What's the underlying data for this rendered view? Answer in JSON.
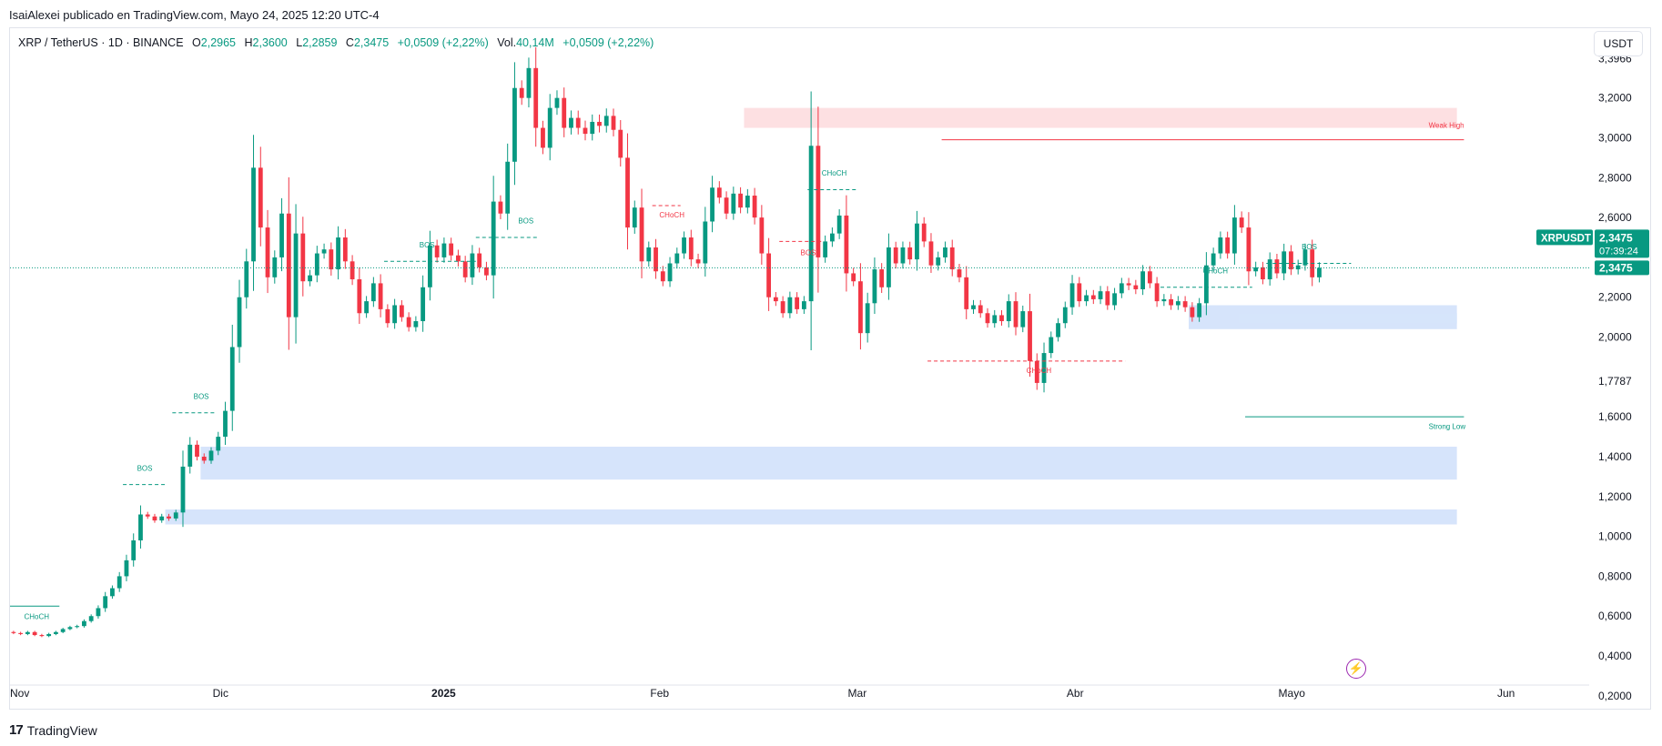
{
  "publisher": "IsaiAlexei publicado en TradingView.com, Mayo 24, 2025 12:20 UTC-4",
  "legend": {
    "symbol": "XRP / TetherUS · 1D · BINANCE",
    "o_label": "O",
    "o": "2,2965",
    "h_label": "H",
    "h": "2,3600",
    "l_label": "L",
    "l": "2,2859",
    "c_label": "C",
    "c": "2,3475",
    "change": "+0,0509 (+2,22%)",
    "vol_label": "Vol.",
    "vol": "40,14M",
    "vol_change": "+0,0509 (+2,22%)"
  },
  "currency_button": "USDT",
  "footer": {
    "logo_mark": "17",
    "brand": "TradingView"
  },
  "colors": {
    "up": "#089981",
    "down": "#f23645",
    "zone_blue": "#d6e4fb",
    "zone_red": "#fde0e2",
    "label_bg": "#089981"
  },
  "chart_data": {
    "type": "candlestick",
    "symbol": "XRPUSDT",
    "last_price": 2.3475,
    "last_price_label": "2,3475",
    "countdown": "07:39:24",
    "ylim": [
      0.14,
      3.55
    ],
    "y_ticks": [
      {
        "v": 3.3966,
        "t": "3,3966"
      },
      {
        "v": 3.2,
        "t": "3,2000"
      },
      {
        "v": 3.0,
        "t": "3,0000"
      },
      {
        "v": 2.8,
        "t": "2,8000"
      },
      {
        "v": 2.6,
        "t": "2,6000"
      },
      {
        "v": 2.2,
        "t": "2,2000"
      },
      {
        "v": 2.0,
        "t": "2,0000"
      },
      {
        "v": 1.7787,
        "t": "1,7787"
      },
      {
        "v": 1.6,
        "t": "1,6000"
      },
      {
        "v": 1.4,
        "t": "1,4000"
      },
      {
        "v": 1.2,
        "t": "1,2000"
      },
      {
        "v": 1.0,
        "t": "1,0000"
      },
      {
        "v": 0.8,
        "t": "0,8000"
      },
      {
        "v": 0.6,
        "t": "0,6000"
      },
      {
        "v": 0.4,
        "t": "0,4000"
      },
      {
        "v": 0.2,
        "t": "0,2000"
      }
    ],
    "x_ticks": [
      {
        "d": 0,
        "t": "Nov",
        "bold": false
      },
      {
        "d": 30,
        "t": "Dic",
        "bold": false
      },
      {
        "d": 61,
        "t": "2025",
        "bold": true
      },
      {
        "d": 92,
        "t": "Feb",
        "bold": false
      },
      {
        "d": 120,
        "t": "Mar",
        "bold": false
      },
      {
        "d": 151,
        "t": "Abr",
        "bold": false
      },
      {
        "d": 181,
        "t": "Mayo",
        "bold": false
      },
      {
        "d": 212,
        "t": "Jun",
        "bold": false
      }
    ],
    "closes": [
      0.515,
      0.51,
      0.52,
      0.505,
      0.5,
      0.51,
      0.52,
      0.535,
      0.545,
      0.55,
      0.575,
      0.6,
      0.64,
      0.7,
      0.74,
      0.8,
      0.88,
      0.98,
      1.11,
      1.1,
      1.08,
      1.1,
      1.09,
      1.12,
      1.35,
      1.46,
      1.4,
      1.38,
      1.43,
      1.5,
      1.63,
      1.95,
      2.2,
      2.38,
      2.85,
      2.55,
      2.3,
      2.4,
      2.62,
      2.1,
      2.52,
      2.28,
      2.31,
      2.42,
      2.44,
      2.34,
      2.5,
      2.38,
      2.29,
      2.12,
      2.18,
      2.27,
      2.14,
      2.07,
      2.16,
      2.1,
      2.05,
      2.08,
      2.25,
      2.46,
      2.4,
      2.47,
      2.41,
      2.38,
      2.3,
      2.42,
      2.35,
      2.31,
      2.68,
      2.62,
      2.88,
      3.25,
      3.2,
      3.35,
      3.05,
      2.95,
      3.15,
      3.2,
      3.05,
      3.1,
      3.05,
      3.02,
      3.08,
      3.06,
      3.11,
      3.04,
      2.9,
      2.55,
      2.65,
      2.38,
      2.45,
      2.33,
      2.28,
      2.37,
      2.42,
      2.5,
      2.39,
      2.37,
      2.58,
      2.75,
      2.7,
      2.62,
      2.72,
      2.65,
      2.71,
      2.6,
      2.42,
      2.2,
      2.18,
      2.12,
      2.2,
      2.14,
      2.18,
      2.96,
      2.4,
      2.48,
      2.52,
      2.61,
      2.32,
      2.28,
      2.02,
      2.17,
      2.34,
      2.25,
      2.45,
      2.37,
      2.45,
      2.39,
      2.57,
      2.48,
      2.36,
      2.4,
      2.45,
      2.34,
      2.3,
      2.14,
      2.16,
      2.12,
      2.07,
      2.11,
      2.08,
      2.18,
      2.05,
      2.13,
      1.88,
      1.77,
      1.92,
      2.0,
      2.07,
      2.15,
      2.27,
      2.18,
      2.21,
      2.19,
      2.23,
      2.16,
      2.22,
      2.27,
      2.26,
      2.24,
      2.33,
      2.27,
      2.18,
      2.19,
      2.16,
      2.18,
      2.15,
      2.1,
      2.17,
      2.36,
      2.42,
      2.5,
      2.42,
      2.6,
      2.55,
      2.33,
      2.35,
      2.29,
      2.39,
      2.32,
      2.43,
      2.34,
      2.36,
      2.44,
      2.3,
      2.3475
    ],
    "zones": [
      {
        "from_day": 104,
        "to_day": 205,
        "top": 3.15,
        "bottom": 3.05,
        "color": "red"
      },
      {
        "from_day": 167,
        "to_day": 205,
        "top": 2.16,
        "bottom": 2.04,
        "color": "blue"
      },
      {
        "from_day": 174,
        "to_day": 205,
        "top": 2.12,
        "bottom": 2.07,
        "color": "blue"
      },
      {
        "from_day": 27,
        "to_day": 205,
        "top": 1.45,
        "bottom": 1.285,
        "color": "blue"
      },
      {
        "from_day": 22,
        "to_day": 205,
        "top": 1.135,
        "bottom": 1.06,
        "color": "blue"
      }
    ],
    "levels": [
      {
        "from_day": 132,
        "to_day": 206,
        "y": 2.99,
        "color": "red",
        "dash": false,
        "label": "Weak High",
        "label_day": 201,
        "label_y": 3.05
      },
      {
        "from_day": 175,
        "to_day": 206,
        "y": 1.6,
        "color": "green",
        "dash": false,
        "label": "Strong Low",
        "label_day": 201,
        "label_y": 1.54
      },
      {
        "from_day": 0,
        "to_day": 7,
        "y": 0.65,
        "color": "green",
        "dash": false,
        "label": "CHoCH",
        "label_day": 2,
        "label_y": 0.585
      },
      {
        "from_day": 16,
        "to_day": 22,
        "y": 1.26,
        "color": "green",
        "dash": true,
        "label": "BOS",
        "label_day": 18,
        "label_y": 1.33
      },
      {
        "from_day": 23,
        "to_day": 29,
        "y": 1.62,
        "color": "green",
        "dash": true,
        "label": "BOS",
        "label_day": 26,
        "label_y": 1.69
      },
      {
        "from_day": 53,
        "to_day": 66,
        "y": 2.38,
        "color": "green",
        "dash": true,
        "label": "BOS",
        "label_day": 58,
        "label_y": 2.45
      },
      {
        "from_day": 66,
        "to_day": 75,
        "y": 2.5,
        "color": "green",
        "dash": true,
        "label": "BOS",
        "label_day": 72,
        "label_y": 2.57
      },
      {
        "from_day": 91,
        "to_day": 95,
        "y": 2.66,
        "color": "red",
        "dash": true,
        "label": "CHoCH",
        "label_day": 92,
        "label_y": 2.6
      },
      {
        "from_day": 113,
        "to_day": 120,
        "y": 2.74,
        "color": "green",
        "dash": true,
        "label": "CHoCH",
        "label_day": 115,
        "label_y": 2.81
      },
      {
        "from_day": 109,
        "to_day": 115,
        "y": 2.48,
        "color": "red",
        "dash": true,
        "label": "BOS",
        "label_day": 112,
        "label_y": 2.41
      },
      {
        "from_day": 130,
        "to_day": 158,
        "y": 1.88,
        "color": "red",
        "dash": true,
        "label": "CHoCH",
        "label_day": 144,
        "label_y": 1.82
      },
      {
        "from_day": 163,
        "to_day": 176,
        "y": 2.25,
        "color": "green",
        "dash": true,
        "label": "CHoCH",
        "label_day": 169,
        "label_y": 2.32
      },
      {
        "from_day": 178,
        "to_day": 190,
        "y": 2.37,
        "color": "green",
        "dash": true,
        "label": "BOS",
        "label_day": 183,
        "label_y": 2.44
      }
    ]
  }
}
